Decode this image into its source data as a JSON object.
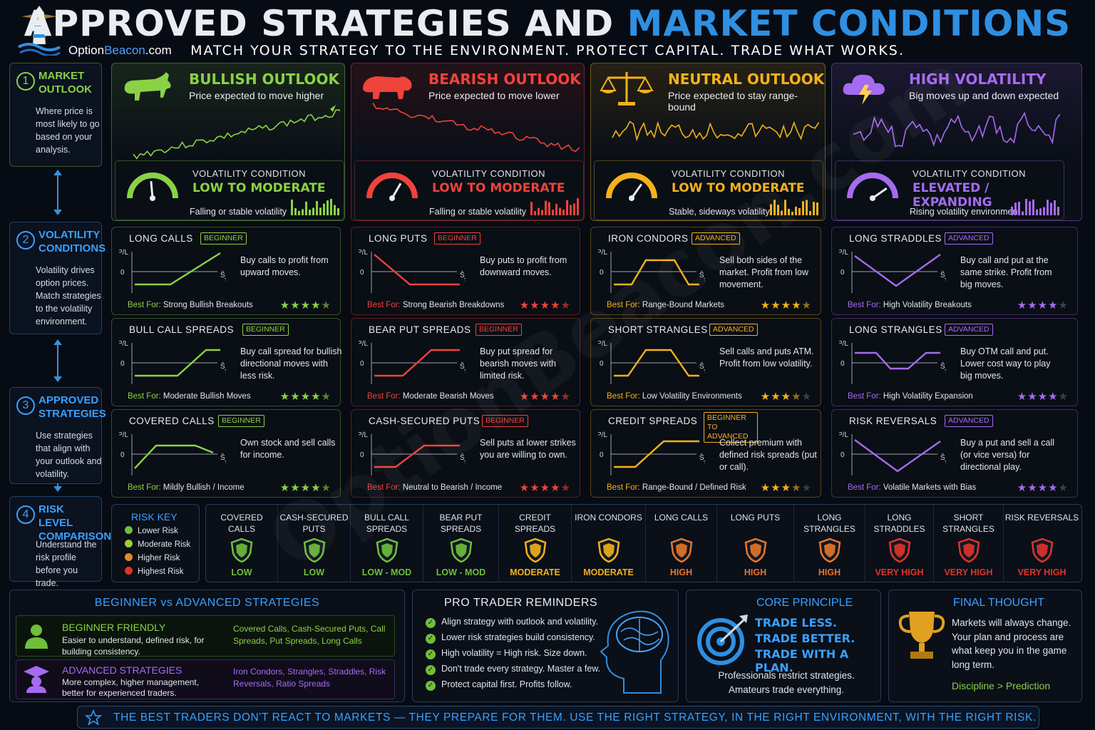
{
  "header": {
    "title_a": "APPROVED STRATEGIES AND",
    "title_b": "MARKET CONDITIONS",
    "subtitle": "MATCH YOUR STRATEGY TO THE ENVIRONMENT. PROTECT CAPITAL. TRADE WHAT WORKS.",
    "brand_a": "Option",
    "brand_b": "Beacon",
    "brand_c": ".com",
    "watermark": "OptionBeacon.com"
  },
  "steps": [
    {
      "num": "1",
      "title": "MARKET OUTLOOK",
      "desc": "Where price is most likely to go based on your analysis.",
      "color": "#8bd146"
    },
    {
      "num": "2",
      "title": "VOLATILITY CONDITIONS",
      "desc": "Volatility drives option prices. Match strategies to the volatility environment.",
      "color": "#3aa0ff"
    },
    {
      "num": "3",
      "title": "APPROVED STRATEGIES",
      "desc": "Use strategies that align with your outlook and volatility.",
      "color": "#3aa0ff"
    },
    {
      "num": "4",
      "title": "RISK LEVEL COMPARISON",
      "desc": "Understand the risk profile before you trade.",
      "color": "#3aa0ff"
    }
  ],
  "outlooks": [
    {
      "title": "BULLISH OUTLOOK",
      "sub": "Price expected to move higher",
      "color": "#8bd146",
      "vol_label": "VOLATILITY CONDITION",
      "vol_value": "LOW TO MODERATE",
      "vol_note": "Falling or stable volatility",
      "icon": "bull-icon"
    },
    {
      "title": "BEARISH OUTLOOK",
      "sub": "Price expected to move lower",
      "color": "#f0433a",
      "vol_label": "VOLATILITY CONDITION",
      "vol_value": "LOW TO MODERATE",
      "vol_note": "Falling or stable volatility",
      "icon": "bear-icon"
    },
    {
      "title": "NEUTRAL OUTLOOK",
      "sub": "Price expected to stay range-bound",
      "color": "#f3b21b",
      "vol_label": "VOLATILITY CONDITION",
      "vol_value": "LOW TO MODERATE",
      "vol_note": "Stable, sideways volatility",
      "icon": "scales-icon"
    },
    {
      "title": "HIGH VOLATILITY",
      "sub": "Big moves up and down expected",
      "color": "#a56bf0",
      "vol_label": "VOLATILITY CONDITION",
      "vol_value": "ELEVATED / EXPANDING",
      "vol_note": "Rising volatility environment",
      "icon": "storm-cloud-icon"
    }
  ],
  "strategies": [
    [
      {
        "name": "LONG CALLS",
        "level": "BEGINNER",
        "text": "Buy calls to profit from upward moves.",
        "best": "Strong Bullish Breakouts",
        "rating": 4.5
      },
      {
        "name": "BULL CALL SPREADS",
        "level": "BEGINNER",
        "text": "Buy call spread for bullish directional moves with less risk.",
        "best": "Moderate Bullish Moves",
        "rating": 4.5
      },
      {
        "name": "COVERED CALLS",
        "level": "BEGINNER",
        "text": "Own stock and sell calls for income.",
        "best": "Mildly Bullish / Income",
        "rating": 4.5
      }
    ],
    [
      {
        "name": "LONG PUTS",
        "level": "BEGINNER",
        "text": "Buy puts to profit from downward moves.",
        "best": "Strong Bearish Breakdowns",
        "rating": 4.5
      },
      {
        "name": "BEAR PUT SPREADS",
        "level": "BEGINNER",
        "text": "Buy put spread for bearish moves with limited risk.",
        "best": "Moderate Bearish Moves",
        "rating": 4.5
      },
      {
        "name": "CASH-SECURED PUTS",
        "level": "BEGINNER",
        "text": "Sell puts at lower strikes you are willing to own.",
        "best": "Neutral to Bearish / Income",
        "rating": 4.5
      }
    ],
    [
      {
        "name": "IRON CONDORS",
        "level": "ADVANCED",
        "text": "Sell both sides of the market. Profit from low movement.",
        "best": "Range-Bound Markets",
        "rating": 4.5
      },
      {
        "name": "SHORT STRANGLES",
        "level": "ADVANCED",
        "text": "Sell calls and puts ATM. Profit from low volatility.",
        "best": "Low Volatility Environments",
        "rating": 3.5
      },
      {
        "name": "CREDIT SPREADS",
        "level": "BEGINNER TO ADVANCED",
        "text": "Collect premium with defined risk spreads (put or call).",
        "best": "Range-Bound / Defined Risk",
        "rating": 3.5
      }
    ],
    [
      {
        "name": "LONG STRADDLES",
        "level": "ADVANCED",
        "text": "Buy call and put at the same strike. Profit from big moves.",
        "best": "High Volatility Breakouts",
        "rating": 4
      },
      {
        "name": "LONG STRANGLES",
        "level": "ADVANCED",
        "text": "Buy OTM call and put. Lower cost way to play big moves.",
        "best": "High Volatility Expansion",
        "rating": 4
      },
      {
        "name": "RISK REVERSALS",
        "level": "ADVANCED",
        "text": "Buy a put and sell a call (or vice versa) for directional play.",
        "best": "Volatile Markets with Bias",
        "rating": 4
      }
    ]
  ],
  "labels": {
    "pl": "P/L",
    "zero": "0",
    "st": "Ŝ",
    "st_sub": "T",
    "best_for": "Best For:"
  },
  "risk_key": {
    "title": "RISK KEY",
    "items": [
      {
        "label": "Lower Risk",
        "color": "#6fbf3a"
      },
      {
        "label": "Moderate Risk",
        "color": "#a4c93a"
      },
      {
        "label": "Higher Risk",
        "color": "#e08a2a"
      },
      {
        "label": "Highest Risk",
        "color": "#e0332a"
      }
    ]
  },
  "risk_levels": [
    {
      "name": "COVERED CALLS",
      "level": "LOW",
      "color": "#6fbf3a"
    },
    {
      "name": "CASH-SECURED PUTS",
      "level": "LOW",
      "color": "#6fbf3a"
    },
    {
      "name": "BULL CALL SPREADS",
      "level": "LOW - MOD",
      "color": "#6fbf3a"
    },
    {
      "name": "BEAR PUT SPREADS",
      "level": "LOW - MOD",
      "color": "#6fbf3a"
    },
    {
      "name": "CREDIT SPREADS",
      "level": "MODERATE",
      "color": "#f0b21b"
    },
    {
      "name": "IRON CONDORS",
      "level": "MODERATE",
      "color": "#f0b21b"
    },
    {
      "name": "LONG CALLS",
      "level": "HIGH",
      "color": "#e8762a"
    },
    {
      "name": "LONG PUTS",
      "level": "HIGH",
      "color": "#e8762a"
    },
    {
      "name": "LONG STRANGLES",
      "level": "HIGH",
      "color": "#e8762a"
    },
    {
      "name": "LONG STRADDLES",
      "level": "VERY HIGH",
      "color": "#e0332a"
    },
    {
      "name": "SHORT STRANGLES",
      "level": "VERY HIGH",
      "color": "#e0332a"
    },
    {
      "name": "RISK REVERSALS",
      "level": "VERY HIGH",
      "color": "#e0332a"
    }
  ],
  "beginner_vs_advanced": {
    "title": "BEGINNER vs ADVANCED STRATEGIES",
    "beginner_title": "BEGINNER FRIENDLY",
    "beginner_desc": "Easier to understand, defined risk, for building consistency.",
    "beginner_list": "Covered Calls, Cash-Secured Puts, Call Spreads, Put Spreads, Long Calls",
    "advanced_title": "ADVANCED STRATEGIES",
    "advanced_desc": "More complex, higher management, better for experienced traders.",
    "advanced_list": "Iron Condors, Strangles, Straddles, Risk Reversals, Ratio Spreads"
  },
  "reminders": {
    "title": "PRO TRADER REMINDERS",
    "items": [
      "Align strategy with outlook and volatility.",
      "Lower risk strategies build consistency.",
      "High volatility = High risk. Size down.",
      "Don't trade every strategy. Master a few.",
      "Protect capital first. Profits follow."
    ]
  },
  "core": {
    "title": "CORE PRINCIPLE",
    "lines": [
      "TRADE LESS.",
      "TRADE BETTER.",
      "TRADE WITH A PLAN."
    ],
    "footer": "Professionals restrict strategies. Amateurs trade everything."
  },
  "final": {
    "title": "FINAL THOUGHT",
    "text": "Markets will always change. Your plan and process are what keep you in the game long term.",
    "tagline": "Discipline > Prediction"
  },
  "banner": "THE BEST TRADERS DON'T REACT TO MARKETS — THEY PREPARE FOR THEM. USE THE RIGHT STRATEGY, IN THE RIGHT ENVIRONMENT, WITH THE RIGHT RISK."
}
